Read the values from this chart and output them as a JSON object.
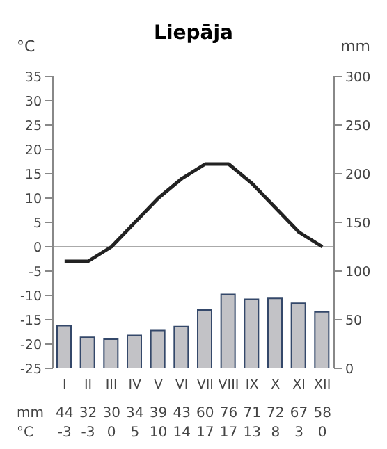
{
  "chart_data": {
    "type": "bar",
    "title": "Liepāja",
    "ylabel": "°C",
    "y2label": "mm",
    "categories": [
      "I",
      "II",
      "III",
      "IV",
      "V",
      "VI",
      "VII",
      "VIII",
      "IX",
      "X",
      "XI",
      "XII"
    ],
    "series": [
      {
        "axis": "y2",
        "color": "#c2c2c6",
        "values": [
          44,
          32,
          30,
          34,
          39,
          43,
          60,
          76,
          71,
          72,
          67,
          58
        ]
      },
      {
        "type": "line",
        "color": "#222222",
        "values": [
          -3,
          -3,
          0,
          5,
          10,
          14,
          17,
          17,
          13,
          8,
          3,
          0
        ]
      }
    ],
    "ylim": [
      -25,
      35
    ],
    "yticks": [
      -25,
      -20,
      -15,
      -10,
      -5,
      0,
      5,
      10,
      15,
      20,
      25,
      30,
      35
    ],
    "y2lim": [
      0,
      300
    ],
    "y2ticks": [
      0,
      50,
      100,
      150,
      200,
      250,
      300
    ],
    "ref_lines": [
      {
        "axis": "y",
        "value": 0,
        "color": "#aaaaaa"
      }
    ],
    "data_labels": true
  }
}
